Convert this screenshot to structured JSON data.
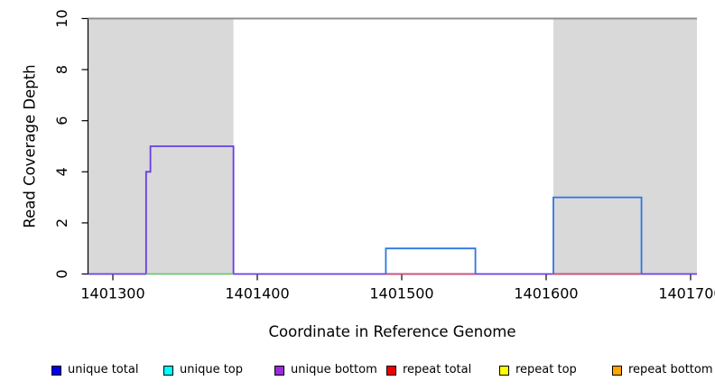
{
  "chart_data": {
    "type": "line",
    "title": "",
    "xlabel": "Coordinate in Reference Genome",
    "ylabel": "Read Coverage Depth",
    "xlim": [
      1401282.8,
      1401704.4
    ],
    "ylim": [
      0,
      10
    ],
    "x_ticks": [
      1401300,
      1401400,
      1401500,
      1401600,
      1401700
    ],
    "y_ticks": [
      0,
      2,
      4,
      6,
      8,
      10
    ],
    "grid": false,
    "background": "#ffffff",
    "axis_color": "#000000",
    "repeat_regions": {
      "fill": "#d9d9d9",
      "ranges": [
        [
          1401282.8,
          1401383.5
        ],
        [
          1401605,
          1401704.4
        ]
      ]
    },
    "series": [
      {
        "name": "unique bottom curve",
        "color": "#6b3ce6",
        "width": 1.8,
        "segments": [
          [
            [
              1401282.8,
              0
            ],
            [
              1401323,
              0
            ],
            [
              1401323,
              4
            ],
            [
              1401326,
              4
            ],
            [
              1401326,
              5
            ],
            [
              1401383.5,
              5
            ],
            [
              1401383.5,
              0
            ],
            [
              1401704.4,
              0
            ]
          ]
        ]
      },
      {
        "name": "green baseline segment",
        "color": "#5fc463",
        "width": 1.6,
        "segments": [
          [
            [
              1401323,
              0
            ],
            [
              1401383.5,
              0
            ]
          ]
        ]
      },
      {
        "name": "repeat total baseline",
        "color": "#e04f5a",
        "width": 1.6,
        "segments": [
          [
            [
              1401489,
              0
            ],
            [
              1401551,
              0
            ]
          ],
          [
            [
              1401604,
              0
            ],
            [
              1401666,
              0
            ]
          ]
        ]
      },
      {
        "name": "unique total curve",
        "color": "#2b78e0",
        "width": 1.8,
        "segments": [
          [
            [
              1401489,
              0
            ],
            [
              1401489,
              1
            ],
            [
              1401551,
              1
            ],
            [
              1401551,
              0
            ]
          ],
          [
            [
              1401605,
              0
            ],
            [
              1401605,
              3
            ],
            [
              1401666,
              3
            ],
            [
              1401666,
              0
            ]
          ]
        ]
      },
      {
        "name": "coverage clip line at 10",
        "color": "#8f8f8f",
        "width": 2,
        "segments": [
          [
            [
              1401282.8,
              10
            ],
            [
              1401704.4,
              10
            ]
          ]
        ]
      }
    ],
    "legend": {
      "position": "bottom",
      "entries": [
        {
          "label": "unique total",
          "color": "#0000ee"
        },
        {
          "label": "unique top",
          "color": "#00ffff"
        },
        {
          "label": "unique bottom",
          "color": "#9a2bdb"
        },
        {
          "label": "repeat total",
          "color": "#ee0000"
        },
        {
          "label": "repeat top",
          "color": "#ffff00"
        },
        {
          "label": "repeat bottom",
          "color": "#ffa500"
        }
      ]
    }
  }
}
